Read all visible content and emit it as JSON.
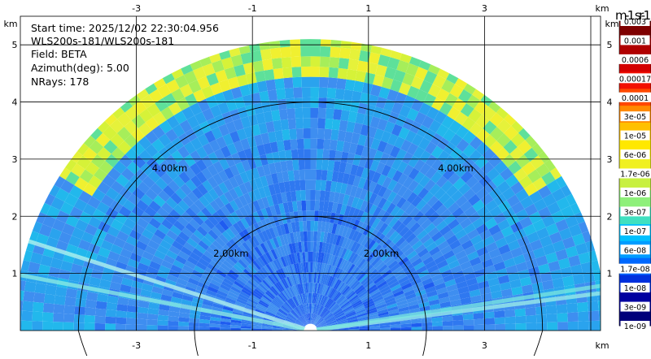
{
  "info": {
    "start_time": "Start time: 2025/12/02 22:30:04.956",
    "instrument": "WLS200s-181/WLS200s-181",
    "field": "Field: BETA",
    "azimuth": "Azimuth(deg): 5.00",
    "nrays": "NRays: 178"
  },
  "chart_data": {
    "type": "heatmap",
    "plot_kind": "RHI polar scan (half-disc, elevation 0-180 deg)",
    "xlabel": "km",
    "ylabel": "km",
    "xlim": [
      -5.0,
      5.0
    ],
    "ylim": [
      0.0,
      5.5
    ],
    "x_ticks": [
      -3,
      -1,
      1,
      3
    ],
    "y_ticks": [
      1,
      2,
      3,
      4,
      5
    ],
    "max_range_km": 5.1,
    "range_rings": [
      {
        "radius_km": 2.0,
        "label": "2.00km"
      },
      {
        "radius_km": 4.0,
        "label": "4.00km"
      }
    ],
    "grid": true,
    "colorbar": {
      "title": "m-1 sr-1",
      "scale": "log",
      "levels": [
        "0.003",
        "0.001",
        "0.0006",
        "0.00017",
        "0.0001",
        "3e-05",
        "1e-05",
        "6e-06",
        "1.7e-06",
        "1e-06",
        "3e-07",
        "1e-07",
        "6e-08",
        "1.7e-08",
        "1e-08",
        "3e-09",
        "1e-09"
      ],
      "colors": [
        "#7f0000",
        "#b00000",
        "#d40000",
        "#f21000",
        "#ff4800",
        "#ff8a00",
        "#ffc000",
        "#ffe800",
        "#f0f020",
        "#c8f040",
        "#8ef07a",
        "#40e0c0",
        "#00c0ff",
        "#009cff",
        "#0068ff",
        "#0030dd",
        "#0000a0",
        "#00007a"
      ]
    }
  }
}
